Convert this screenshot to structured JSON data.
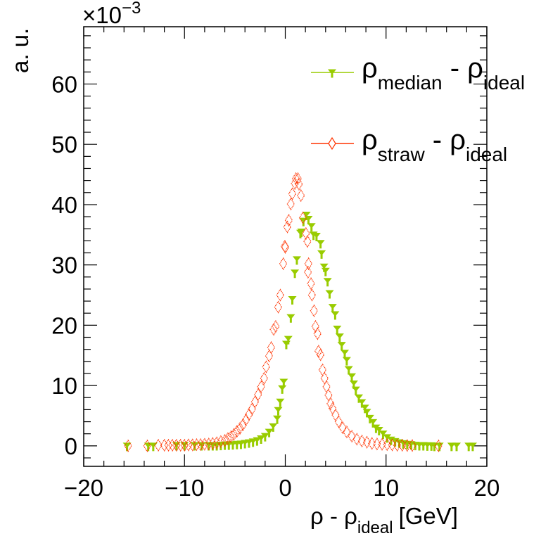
{
  "chart_data": {
    "type": "scatter",
    "title": "",
    "xlabel": {
      "main": "ρ - ρ",
      "sub": "ideal",
      "unit": "[GeV]"
    },
    "ylabel": "a. u.",
    "y_multiplier": {
      "base": "×10",
      "exponent": "−3"
    },
    "xlim": [
      -20,
      20
    ],
    "ylim": [
      -3.4,
      69.5
    ],
    "x_ticks": [
      -20,
      -10,
      0,
      10,
      20
    ],
    "x_tick_labels": [
      "−20",
      "−10",
      "0",
      "10",
      "20"
    ],
    "y_ticks": [
      0,
      10,
      20,
      30,
      40,
      50,
      60
    ],
    "y_tick_labels": [
      "0",
      "10",
      "20",
      "30",
      "40",
      "50",
      "60"
    ],
    "grid": false,
    "legend_position": "top-right",
    "series": [
      {
        "name": "ρ_median - ρ_ideal",
        "legend": {
          "main": "ρ",
          "sub": "median",
          "rest": " - ρ",
          "sub2": "ideal"
        },
        "color": "#99cc00",
        "marker": "triangle-down",
        "points": [
          [
            -15.7,
            0.0
          ],
          [
            -13.6,
            0.0
          ],
          [
            -13.1,
            0.0
          ],
          [
            -10.8,
            0.1
          ],
          [
            -10.0,
            0.1
          ],
          [
            -9.0,
            0.1
          ],
          [
            -8.3,
            0.1
          ],
          [
            -7.6,
            0.1
          ],
          [
            -7.2,
            0.1
          ],
          [
            -6.8,
            0.1
          ],
          [
            -6.4,
            0.15
          ],
          [
            -6.0,
            0.2
          ],
          [
            -5.6,
            0.2
          ],
          [
            -5.2,
            0.25
          ],
          [
            -4.8,
            0.3
          ],
          [
            -4.4,
            0.35
          ],
          [
            -4.0,
            0.45
          ],
          [
            -3.6,
            0.55
          ],
          [
            -3.2,
            0.7
          ],
          [
            -2.8,
            0.9
          ],
          [
            -2.4,
            1.2
          ],
          [
            -2.0,
            1.6
          ],
          [
            -1.6,
            2.3
          ],
          [
            -1.2,
            3.2
          ],
          [
            -0.8,
            4.5
          ],
          [
            -0.7,
            5.9
          ],
          [
            -0.5,
            7.3
          ],
          [
            -0.3,
            9.5
          ],
          [
            -0.15,
            10.6
          ],
          [
            0.1,
            16.9
          ],
          [
            0.3,
            17.7
          ],
          [
            0.55,
            21.3
          ],
          [
            0.7,
            24.3
          ],
          [
            0.95,
            28.7
          ],
          [
            1.15,
            30.9
          ],
          [
            1.5,
            35.3
          ],
          [
            1.6,
            35.5
          ],
          [
            1.8,
            37.3
          ],
          [
            2.1,
            38.3
          ],
          [
            2.3,
            37.6
          ],
          [
            2.6,
            36.4
          ],
          [
            2.8,
            35.0
          ],
          [
            3.1,
            34.8
          ],
          [
            3.5,
            33.6
          ],
          [
            3.6,
            31.9
          ],
          [
            3.85,
            29.7
          ],
          [
            4.0,
            29.0
          ],
          [
            4.2,
            27.3
          ],
          [
            4.4,
            25.3
          ],
          [
            4.7,
            23.0
          ],
          [
            4.95,
            21.8
          ],
          [
            5.15,
            19.4
          ],
          [
            5.4,
            18.1
          ],
          [
            5.6,
            16.7
          ],
          [
            5.9,
            15.4
          ],
          [
            6.1,
            14.2
          ],
          [
            6.3,
            12.7
          ],
          [
            6.6,
            11.5
          ],
          [
            6.8,
            10.3
          ],
          [
            7.0,
            9.3
          ],
          [
            7.3,
            8.0
          ],
          [
            7.6,
            7.2
          ],
          [
            7.9,
            6.3
          ],
          [
            8.1,
            5.6
          ],
          [
            8.4,
            4.6
          ],
          [
            8.7,
            3.9
          ],
          [
            9.0,
            3.0
          ],
          [
            9.3,
            2.6
          ],
          [
            9.7,
            2.0
          ],
          [
            10.1,
            1.4
          ],
          [
            10.5,
            1.0
          ],
          [
            10.9,
            0.75
          ],
          [
            11.3,
            0.55
          ],
          [
            11.7,
            0.4
          ],
          [
            12.1,
            0.3
          ],
          [
            12.5,
            0.25
          ],
          [
            12.9,
            0.15
          ],
          [
            13.3,
            0.1
          ],
          [
            13.7,
            0.1
          ],
          [
            14.1,
            0.05
          ],
          [
            14.5,
            0.05
          ],
          [
            14.8,
            0.0
          ],
          [
            15.3,
            0.0
          ],
          [
            16.5,
            0.0
          ],
          [
            17.0,
            0.0
          ],
          [
            18.2,
            0.0
          ],
          [
            18.6,
            0.0
          ]
        ]
      },
      {
        "name": "ρ_straw - ρ_ideal",
        "legend": {
          "main": "ρ",
          "sub": "straw",
          "rest": " - ρ",
          "sub2": "ideal"
        },
        "color": "#ff3300",
        "marker": "diamond-open",
        "points": [
          [
            -15.6,
            0.0
          ],
          [
            -13.7,
            0.0
          ],
          [
            -12.6,
            0.1
          ],
          [
            -12.0,
            0.1
          ],
          [
            -11.6,
            0.1
          ],
          [
            -11.2,
            0.1
          ],
          [
            -10.8,
            0.1
          ],
          [
            -10.4,
            0.1
          ],
          [
            -10.0,
            0.1
          ],
          [
            -9.6,
            0.15
          ],
          [
            -9.2,
            0.15
          ],
          [
            -8.8,
            0.2
          ],
          [
            -8.4,
            0.2
          ],
          [
            -8.0,
            0.25
          ],
          [
            -7.6,
            0.3
          ],
          [
            -7.2,
            0.4
          ],
          [
            -6.8,
            0.5
          ],
          [
            -6.4,
            0.7
          ],
          [
            -6.0,
            0.9
          ],
          [
            -5.7,
            1.2
          ],
          [
            -5.4,
            1.5
          ],
          [
            -5.1,
            1.9
          ],
          [
            -4.8,
            2.4
          ],
          [
            -4.5,
            2.9
          ],
          [
            -4.2,
            3.5
          ],
          [
            -3.9,
            4.3
          ],
          [
            -3.6,
            5.2
          ],
          [
            -3.3,
            6.1
          ],
          [
            -3.0,
            7.3
          ],
          [
            -2.7,
            8.5
          ],
          [
            -2.4,
            9.8
          ],
          [
            -2.1,
            11.2
          ],
          [
            -1.9,
            13.1
          ],
          [
            -1.6,
            14.9
          ],
          [
            -1.4,
            16.3
          ],
          [
            -1.15,
            19.3
          ],
          [
            -0.95,
            19.8
          ],
          [
            -0.7,
            23.0
          ],
          [
            -0.5,
            25.0
          ],
          [
            -0.2,
            30.2
          ],
          [
            0.0,
            32.9
          ],
          [
            -0.05,
            33.1
          ],
          [
            0.2,
            36.3
          ],
          [
            0.35,
            37.4
          ],
          [
            0.55,
            40.1
          ],
          [
            0.7,
            41.8
          ],
          [
            0.95,
            43.5
          ],
          [
            1.05,
            44.3
          ],
          [
            1.25,
            44.3
          ],
          [
            1.35,
            43.4
          ],
          [
            1.55,
            41.5
          ],
          [
            1.75,
            37.8
          ],
          [
            2.05,
            35.2
          ],
          [
            2.2,
            33.9
          ],
          [
            2.3,
            30.2
          ],
          [
            2.25,
            28.8
          ],
          [
            2.55,
            26.9
          ],
          [
            2.65,
            25.0
          ],
          [
            2.85,
            22.4
          ],
          [
            3.0,
            19.8
          ],
          [
            3.2,
            18.6
          ],
          [
            3.3,
            15.7
          ],
          [
            3.5,
            15.1
          ],
          [
            3.7,
            12.6
          ],
          [
            3.9,
            11.2
          ],
          [
            4.1,
            9.8
          ],
          [
            4.3,
            8.4
          ],
          [
            4.5,
            7.0
          ],
          [
            4.7,
            6.2
          ],
          [
            5.0,
            5.1
          ],
          [
            5.3,
            4.0
          ],
          [
            5.7,
            3.0
          ],
          [
            6.1,
            2.3
          ],
          [
            6.6,
            1.6
          ],
          [
            7.1,
            1.1
          ],
          [
            7.6,
            0.8
          ],
          [
            8.1,
            0.6
          ],
          [
            8.6,
            0.4
          ],
          [
            9.1,
            0.3
          ],
          [
            9.6,
            0.25
          ],
          [
            10.1,
            0.2
          ],
          [
            10.6,
            0.15
          ],
          [
            11.1,
            0.1
          ],
          [
            11.6,
            0.1
          ],
          [
            12.1,
            0.05
          ],
          [
            12.6,
            0.05
          ],
          [
            15.2,
            0.0
          ]
        ]
      }
    ]
  }
}
